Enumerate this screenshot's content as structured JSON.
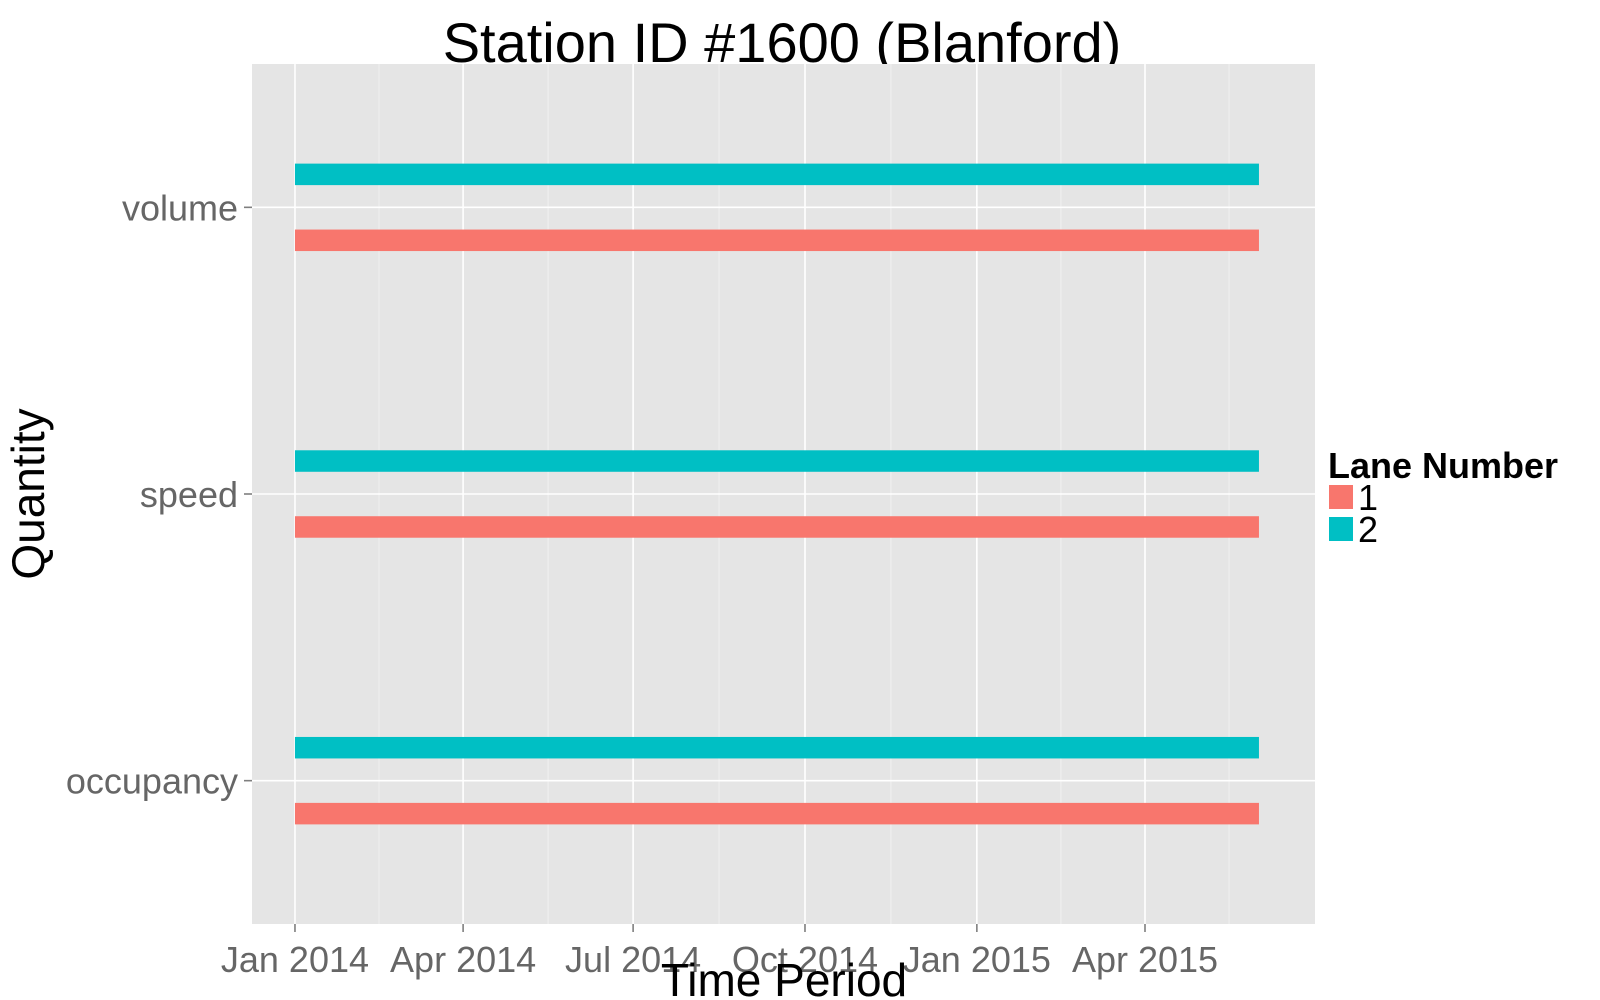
{
  "chart_data": {
    "type": "bar",
    "orientation": "horizontal",
    "title": "Station ID #1600 (Blanford)",
    "xlabel": "Time Period",
    "ylabel": "Quantity",
    "categories": [
      "volume",
      "speed",
      "occupancy"
    ],
    "x_ticks": [
      "Jan 2014",
      "Apr 2014",
      "Jul 2014",
      "Oct 2014",
      "Jan 2015",
      "Apr 2015"
    ],
    "xlim": [
      "2013-12-09",
      "2015-07-01"
    ],
    "grid": true,
    "legend": {
      "title": "Lane Number",
      "position": "right"
    },
    "series": [
      {
        "name": "1",
        "color": "#F8766D",
        "start": "2014-01-01",
        "end": "2015-06-01"
      },
      {
        "name": "2",
        "color": "#00BFC4",
        "start": "2014-01-01",
        "end": "2015-06-01"
      }
    ]
  }
}
